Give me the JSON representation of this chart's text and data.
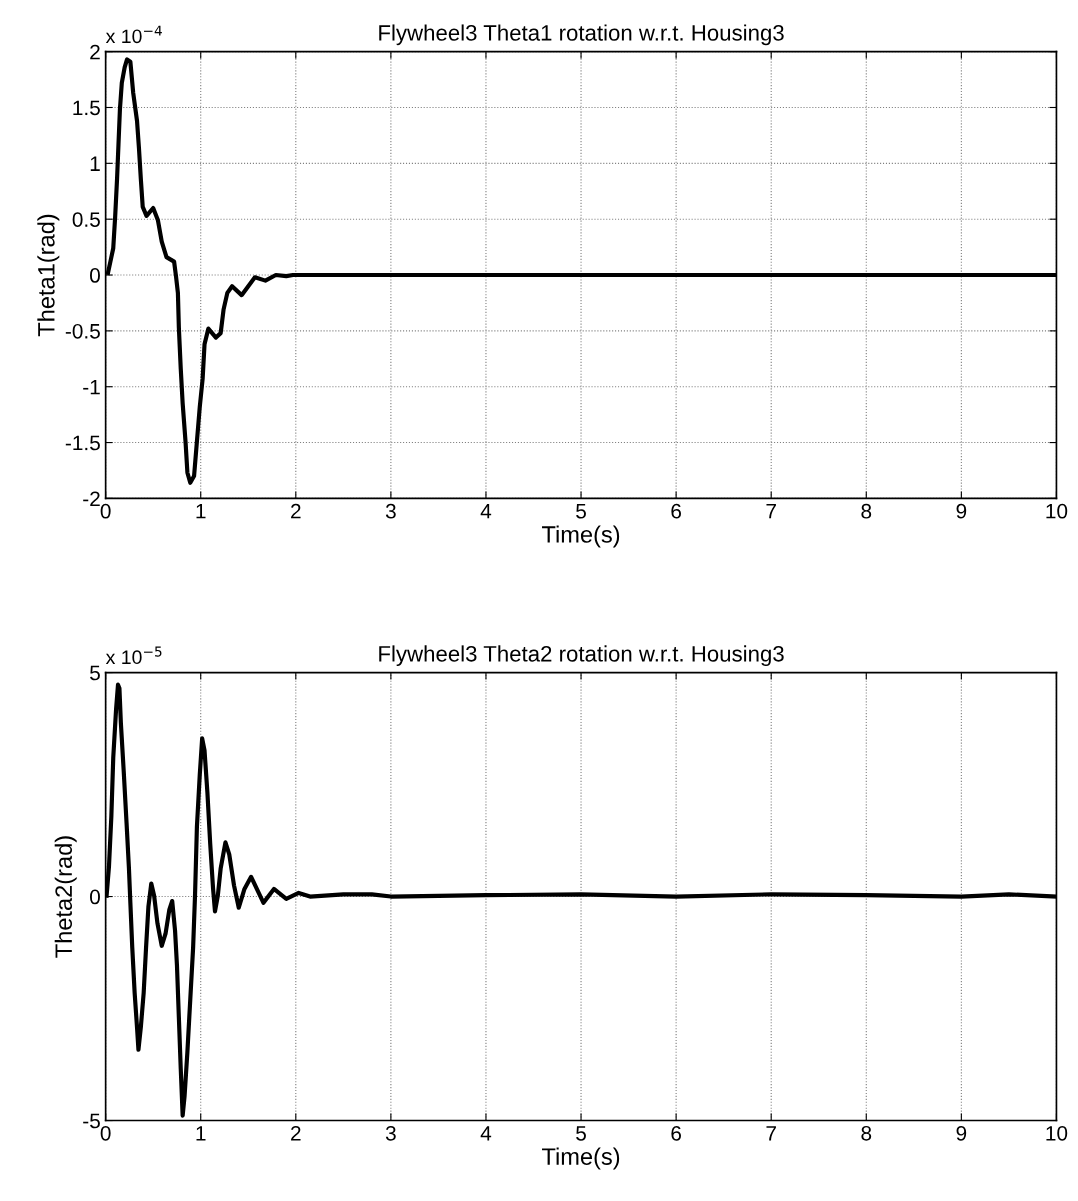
{
  "chart_data": [
    {
      "type": "line",
      "title": "Flywheel3 Theta1 rotation w.r.t. Housing3",
      "xlabel": "Time(s)",
      "ylabel": "Theta1(rad)",
      "annotations": [
        "x 10$^{−4}$"
      ],
      "xlim": [
        0,
        10
      ],
      "xticks": [
        0,
        1,
        2,
        3,
        4,
        5,
        6,
        7,
        8,
        9,
        10
      ],
      "ylim": [
        -2,
        2
      ],
      "yticks": [
        -2,
        -1.5,
        -1,
        -0.5,
        0,
        0.5,
        1,
        1.5,
        2
      ],
      "grid": true,
      "legend": false,
      "line_style": "solid",
      "marker": "none",
      "series": [
        {
          "color": "#000000",
          "x": [
            0.025,
            0.05,
            0.08,
            0.1,
            0.12,
            0.135,
            0.15,
            0.17,
            0.2,
            0.225,
            0.26,
            0.29,
            0.33,
            0.35,
            0.37,
            0.39,
            0.43,
            0.5,
            0.55,
            0.59,
            0.64,
            0.72,
            0.74,
            0.76,
            0.77,
            0.79,
            0.81,
            0.84,
            0.86,
            0.89,
            0.93,
            0.96,
            0.99,
            1.02,
            1.04,
            1.08,
            1.16,
            1.21,
            1.24,
            1.28,
            1.33,
            1.43,
            1.5,
            1.57,
            1.68,
            1.79,
            1.9,
            1.97,
            10
          ],
          "values": [
            0.02,
            0.12,
            0.24,
            0.52,
            0.86,
            1.17,
            1.48,
            1.72,
            1.86,
            1.93,
            1.91,
            1.63,
            1.38,
            1.14,
            0.86,
            0.61,
            0.53,
            0.6,
            0.49,
            0.3,
            0.16,
            0.12,
            -0.01,
            -0.16,
            -0.47,
            -0.84,
            -1.15,
            -1.49,
            -1.77,
            -1.86,
            -1.8,
            -1.49,
            -1.18,
            -0.93,
            -0.62,
            -0.48,
            -0.56,
            -0.52,
            -0.31,
            -0.16,
            -0.1,
            -0.18,
            -0.1,
            -0.02,
            -0.05,
            0,
            -0.01,
            0,
            0
          ]
        }
      ]
    },
    {
      "type": "line",
      "title": "Flywheel3 Theta2 rotation w.r.t. Housing3",
      "xlabel": "Time(s)",
      "ylabel": "Theta2(rad)",
      "annotations": [
        "x 10$^{−5}$"
      ],
      "xlim": [
        0,
        10
      ],
      "xticks": [
        0,
        1,
        2,
        3,
        4,
        5,
        6,
        7,
        8,
        9,
        10
      ],
      "ylim": [
        -5,
        5
      ],
      "yticks": [
        -5,
        0,
        5
      ],
      "grid": true,
      "legend": false,
      "line_style": "solid",
      "marker": "none",
      "series": [
        {
          "color": "#000000",
          "x": [
            0.01,
            0.035,
            0.06,
            0.08,
            0.11,
            0.13,
            0.145,
            0.16,
            0.19,
            0.22,
            0.245,
            0.26,
            0.28,
            0.305,
            0.33,
            0.345,
            0.37,
            0.4,
            0.425,
            0.45,
            0.48,
            0.51,
            0.545,
            0.59,
            0.63,
            0.67,
            0.7,
            0.73,
            0.75,
            0.77,
            0.79,
            0.81,
            0.83,
            0.86,
            0.89,
            0.92,
            0.94,
            0.96,
            0.99,
            1.015,
            1.04,
            1.07,
            1.1,
            1.13,
            1.15,
            1.18,
            1.21,
            1.26,
            1.3,
            1.35,
            1.4,
            1.46,
            1.53,
            1.59,
            1.66,
            1.77,
            1.9,
            2.03,
            2.15,
            2.5,
            2.8,
            3,
            4,
            5,
            6,
            7,
            8,
            9,
            9.5,
            10
          ],
          "values": [
            0.02,
            0.67,
            1.79,
            3.1,
            4.19,
            4.73,
            4.65,
            3.88,
            2.8,
            1.64,
            0.63,
            -0.14,
            -1.14,
            -2.15,
            -2.92,
            -3.42,
            -2.92,
            -2.15,
            -1.14,
            -0.22,
            0.29,
            0.02,
            -0.6,
            -1.1,
            -0.83,
            -0.29,
            -0.1,
            -0.76,
            -1.53,
            -2.69,
            -3.85,
            -4.89,
            -4.46,
            -3.46,
            -2.3,
            -1.14,
            0.02,
            1.56,
            2.72,
            3.53,
            3.26,
            2.33,
            1.17,
            0.17,
            -0.33,
            0.02,
            0.63,
            1.21,
            0.94,
            0.25,
            -0.25,
            0.17,
            0.44,
            0.17,
            -0.14,
            0.17,
            -0.05,
            0.08,
            0,
            0.05,
            0.05,
            0,
            0.03,
            0.05,
            0,
            0.05,
            0.03,
            0,
            0.05,
            0
          ]
        }
      ]
    }
  ]
}
